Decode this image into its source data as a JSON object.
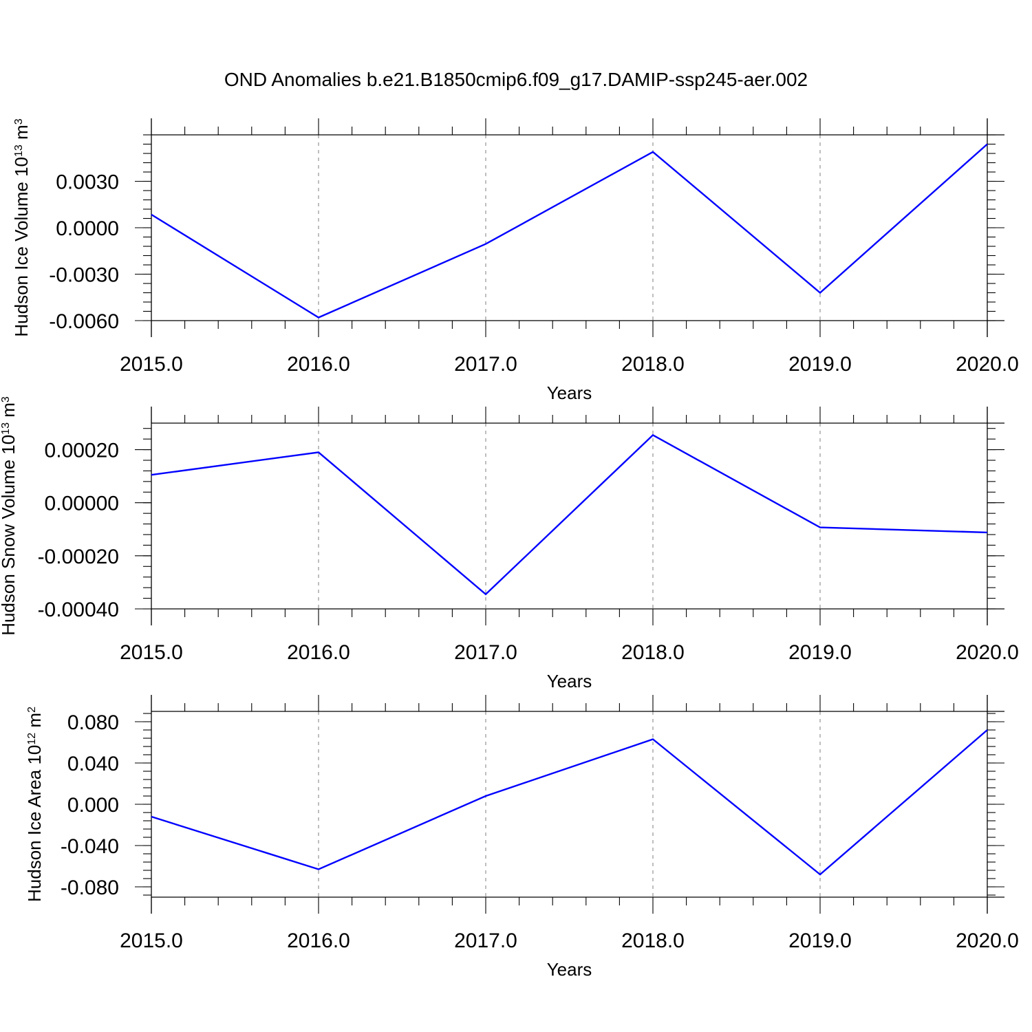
{
  "title": "OND Anomalies b.e21.B1850cmip6.f09_g17.DAMIP-ssp245-aer.002",
  "colors": {
    "series": "#0000ff",
    "grid": "#888888",
    "frame": "#000000"
  },
  "chart_data": [
    {
      "type": "line",
      "ylabel": {
        "base": "Hudson Ice Volume 10",
        "exp1": "13",
        "unit": " m",
        "exp2": "3"
      },
      "xlabel": "Years",
      "x": [
        2015,
        2016,
        2017,
        2018,
        2019,
        2020
      ],
      "series": [
        {
          "values": [
            0.00085,
            -0.0058,
            -0.00105,
            0.0049,
            -0.0042,
            0.0054
          ]
        }
      ],
      "xlim": [
        2015,
        2020
      ],
      "ylim": [
        -0.006,
        0.006
      ],
      "yticks": [
        -0.006,
        -0.003,
        0.0,
        0.003
      ],
      "ytick_labels": [
        "-0.0060",
        "-0.0030",
        "0.0000",
        "0.0030"
      ],
      "xtick_labels": [
        "2015.0",
        "2016.0",
        "2017.0",
        "2018.0",
        "2019.0",
        "2020.0"
      ],
      "grid": "vertical dashed at major x ticks"
    },
    {
      "type": "line",
      "ylabel": {
        "base": "Hudson Snow Volume 10",
        "exp1": "13",
        "unit": " m",
        "exp2": "3"
      },
      "xlabel": "Years",
      "x": [
        2015,
        2016,
        2017,
        2018,
        2019,
        2020
      ],
      "series": [
        {
          "values": [
            0.000105,
            0.00019,
            -0.000345,
            0.000255,
            -9.3e-05,
            -0.000112
          ]
        }
      ],
      "xlim": [
        2015,
        2020
      ],
      "ylim": [
        -0.0004,
        0.0003
      ],
      "yticks": [
        -0.0004,
        -0.0002,
        0.0,
        0.0002
      ],
      "ytick_labels": [
        "-0.00040",
        "-0.00020",
        "0.00000",
        "0.00020"
      ],
      "xtick_labels": [
        "2015.0",
        "2016.0",
        "2017.0",
        "2018.0",
        "2019.0",
        "2020.0"
      ],
      "grid": "vertical dashed at major x ticks"
    },
    {
      "type": "line",
      "ylabel": {
        "base": "Hudson Ice Area 10",
        "exp1": "12",
        "unit": " m",
        "exp2": "2"
      },
      "xlabel": "Years",
      "x": [
        2015,
        2016,
        2017,
        2018,
        2019,
        2020
      ],
      "series": [
        {
          "values": [
            -0.012,
            -0.063,
            0.008,
            0.063,
            -0.068,
            0.072
          ]
        }
      ],
      "xlim": [
        2015,
        2020
      ],
      "ylim": [
        -0.09,
        0.09
      ],
      "yticks": [
        -0.08,
        -0.04,
        0.0,
        0.04,
        0.08
      ],
      "ytick_labels": [
        "-0.080",
        "-0.040",
        "0.000",
        "0.040",
        "0.080"
      ],
      "xtick_labels": [
        "2015.0",
        "2016.0",
        "2017.0",
        "2018.0",
        "2019.0",
        "2020.0"
      ],
      "grid": "vertical dashed at major x ticks"
    }
  ]
}
